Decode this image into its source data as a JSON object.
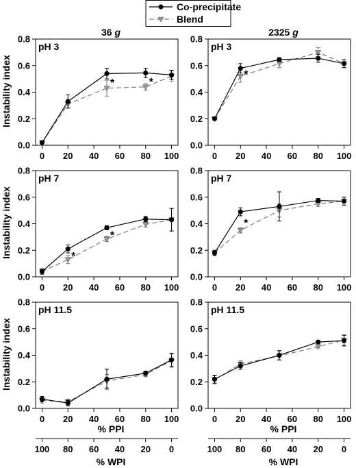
{
  "legend": {
    "co_label": "Co-precipitate",
    "blend_label": "Blend"
  },
  "columns": [
    {
      "prefix": "36 ",
      "unit": "g"
    },
    {
      "prefix": "2325 ",
      "unit": "g"
    }
  ],
  "y_axis_label": "Instability index",
  "x_axis_label_ppi": "% PPI",
  "x_axis_label_wpi": "% WPI",
  "colors": {
    "co": "#000000",
    "blend": "#7a7a7a",
    "blend_fill": "#9a9a9a"
  },
  "chart_data": [
    {
      "type": "line",
      "panel": "pH 3",
      "column": "36 g",
      "x": [
        0,
        20,
        50,
        80,
        100
      ],
      "ylim": [
        0,
        0.8
      ],
      "xlim": [
        -5,
        105
      ],
      "yticks": [
        "0.0",
        "0.2",
        "0.4",
        "0.6",
        "0.8"
      ],
      "xticks": [
        "0",
        "20",
        "40",
        "60",
        "80",
        "100"
      ],
      "series": [
        {
          "name": "Co-precipitate",
          "values": [
            0.02,
            0.33,
            0.54,
            0.545,
            0.53
          ],
          "errors": [
            0.005,
            0.05,
            0.04,
            0.035,
            0.035
          ]
        },
        {
          "name": "Blend",
          "values": [
            0.02,
            0.31,
            0.43,
            0.44,
            0.52
          ],
          "errors": [
            0.005,
            0.03,
            0.06,
            0.025,
            0.04
          ]
        }
      ],
      "significant_x": [
        50,
        80
      ]
    },
    {
      "type": "line",
      "panel": "pH 3",
      "column": "2325 g",
      "x": [
        0,
        20,
        50,
        80,
        100
      ],
      "ylim": [
        0,
        0.8
      ],
      "xlim": [
        -5,
        105
      ],
      "yticks": [
        "0.0",
        "0.2",
        "0.4",
        "0.6",
        "0.8"
      ],
      "xticks": [
        "0",
        "20",
        "40",
        "60",
        "80",
        "100"
      ],
      "series": [
        {
          "name": "Co-precipitate",
          "values": [
            0.2,
            0.58,
            0.645,
            0.655,
            0.615
          ],
          "errors": [
            0.01,
            0.035,
            0.015,
            0.03,
            0.03
          ]
        },
        {
          "name": "Blend",
          "values": [
            0.2,
            0.52,
            0.615,
            0.7,
            0.615
          ],
          "errors": [
            0.01,
            0.045,
            0.03,
            0.035,
            0.03
          ]
        }
      ],
      "significant_x": [
        20
      ]
    },
    {
      "type": "line",
      "panel": "pH 7",
      "column": "36 g",
      "x": [
        0,
        20,
        50,
        80,
        100
      ],
      "ylim": [
        0,
        0.8
      ],
      "xlim": [
        -5,
        105
      ],
      "yticks": [
        "0.0",
        "0.2",
        "0.4",
        "0.6",
        "0.8"
      ],
      "xticks": [
        "0",
        "20",
        "40",
        "60",
        "80",
        "100"
      ],
      "series": [
        {
          "name": "Co-precipitate",
          "values": [
            0.04,
            0.21,
            0.37,
            0.435,
            0.43
          ],
          "errors": [
            0.02,
            0.03,
            0.015,
            0.02,
            0.085
          ]
        },
        {
          "name": "Blend",
          "values": [
            0.04,
            0.13,
            0.285,
            0.395,
            0.43
          ],
          "errors": [
            0.02,
            0.03,
            0.02,
            0.02,
            0.085
          ]
        }
      ],
      "significant_x": [
        20,
        50
      ]
    },
    {
      "type": "line",
      "panel": "pH 7",
      "column": "2325 g",
      "x": [
        0,
        20,
        50,
        80,
        100
      ],
      "ylim": [
        0,
        0.8
      ],
      "xlim": [
        -5,
        105
      ],
      "yticks": [
        "0.0",
        "0.2",
        "0.4",
        "0.6",
        "0.8"
      ],
      "xticks": [
        "0",
        "20",
        "40",
        "60",
        "80",
        "100"
      ],
      "series": [
        {
          "name": "Co-precipitate",
          "values": [
            0.18,
            0.49,
            0.53,
            0.575,
            0.57
          ],
          "errors": [
            0.02,
            0.03,
            0.11,
            0.015,
            0.03
          ]
        },
        {
          "name": "Blend",
          "values": [
            0.18,
            0.35,
            0.5,
            0.55,
            0.57
          ],
          "errors": [
            0.02,
            0.02,
            0.05,
            0.02,
            0.03
          ]
        }
      ],
      "significant_x": [
        20
      ]
    },
    {
      "type": "line",
      "panel": "pH 11.5",
      "column": "36 g",
      "x": [
        0,
        20,
        50,
        80,
        100
      ],
      "ylim": [
        0,
        0.8
      ],
      "xlim": [
        -5,
        105
      ],
      "yticks": [
        "0.0",
        "0.2",
        "0.4",
        "0.6",
        "0.8"
      ],
      "xticks": [
        "0",
        "20",
        "40",
        "60",
        "80",
        "100"
      ],
      "series": [
        {
          "name": "Co-precipitate",
          "values": [
            0.07,
            0.04,
            0.22,
            0.265,
            0.365
          ],
          "errors": [
            0.02,
            0.02,
            0.075,
            0.015,
            0.05
          ]
        },
        {
          "name": "Blend",
          "values": [
            0.06,
            0.05,
            0.205,
            0.255,
            0.36
          ],
          "errors": [
            0.02,
            0.02,
            0.05,
            0.015,
            0.05
          ]
        }
      ],
      "significant_x": []
    },
    {
      "type": "line",
      "panel": "pH 11.5",
      "column": "2325 g",
      "x": [
        0,
        20,
        50,
        80,
        100
      ],
      "ylim": [
        0,
        0.8
      ],
      "xlim": [
        -5,
        105
      ],
      "yticks": [
        "0.0",
        "0.2",
        "0.4",
        "0.6",
        "0.8"
      ],
      "xticks": [
        "0",
        "20",
        "40",
        "60",
        "80",
        "100"
      ],
      "series": [
        {
          "name": "Co-precipitate",
          "values": [
            0.22,
            0.32,
            0.4,
            0.5,
            0.51
          ],
          "errors": [
            0.03,
            0.025,
            0.035,
            0.01,
            0.04
          ]
        },
        {
          "name": "Blend",
          "values": [
            0.215,
            0.335,
            0.395,
            0.465,
            0.515
          ],
          "errors": [
            0.03,
            0.025,
            0.03,
            0.01,
            0.04
          ]
        }
      ],
      "significant_x": []
    }
  ],
  "wpi_axes": [
    {
      "ticks": [
        "100",
        "80",
        "60",
        "40",
        "20",
        "0"
      ]
    },
    {
      "ticks": [
        "100",
        "80",
        "60",
        "40",
        "20",
        "0"
      ]
    }
  ]
}
